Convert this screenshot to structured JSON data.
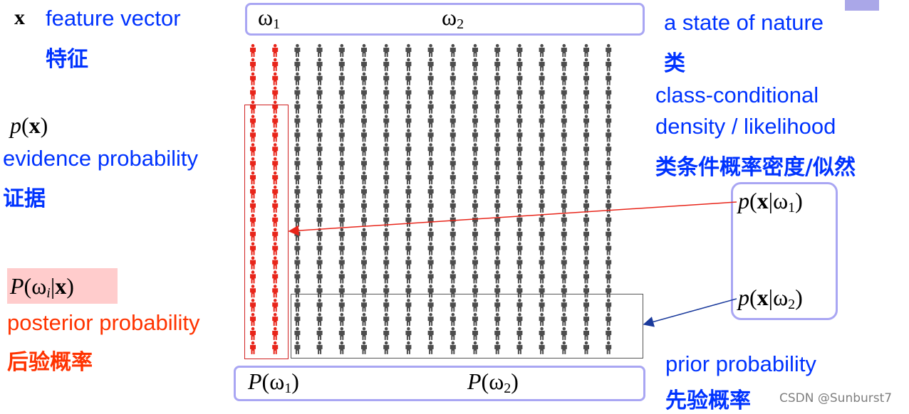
{
  "labels": {
    "x_symbol": "x",
    "feature_vector": "feature vector",
    "feature_vector_zh": "特征",
    "evidence_math": "p(x)",
    "evidence": "evidence probability",
    "evidence_zh": "证据",
    "posterior_math": "P(ωi|x)",
    "posterior": "posterior probability",
    "posterior_zh": "后验概率",
    "state_of_nature": "a state of nature",
    "state_of_nature_zh": "类",
    "class_conditional_1": "class-conditional",
    "class_conditional_2": "density / likelihood",
    "class_conditional_zh": "类条件概率密度/似然",
    "likelihood1": "p(x|ω1)",
    "likelihood2": "p(x|ω2)",
    "prior": "prior probability",
    "prior_zh": "先验概率",
    "top_omega1": "ω1",
    "top_omega2": "ω2",
    "bottom_prior1": "P(ω1)",
    "bottom_prior2": "P(ω2)",
    "watermark": "CSDN @Sunburst7"
  },
  "crowd": {
    "columns": 17,
    "rows": 22,
    "class1_columns": 2,
    "class1_color": "#e8251a",
    "class2_color": "#4d4d4d",
    "icon": "person-icon"
  },
  "colors": {
    "text_blue": "#0033ff",
    "text_red": "#ff3300",
    "box_purple": "#a9a6f3",
    "posterior_highlight": "#ffcccc",
    "evidence_box": "#d02020",
    "prior_box": "#555555",
    "arrow_red": "#e8251a",
    "arrow_blue": "#1a3a9c"
  }
}
